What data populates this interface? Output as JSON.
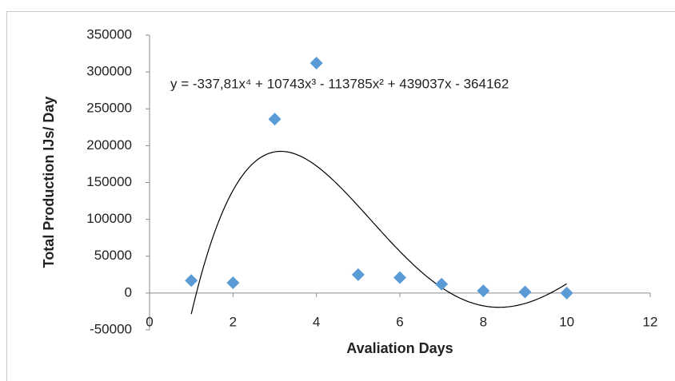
{
  "chart_data": {
    "type": "scatter",
    "x_label": "Avaliation Days",
    "y_label": "Total Production IJs/ Day",
    "x": [
      1,
      2,
      3,
      4,
      5,
      6,
      7,
      8,
      9,
      10
    ],
    "values": [
      17000,
      14000,
      236000,
      312000,
      25000,
      21000,
      12000,
      3000,
      1500,
      0
    ],
    "color": "#5b9bd5",
    "xlim": [
      0,
      12
    ],
    "xticks": [
      0,
      2,
      4,
      6,
      8,
      10,
      12
    ],
    "ylim": [
      -50000,
      350000
    ],
    "yticks": [
      -50000,
      0,
      50000,
      100000,
      150000,
      200000,
      250000,
      300000,
      350000
    ],
    "grid": false,
    "trendline": {
      "equation": "y = -337,81x⁴ + 10743x³ - 113785x² + 439037x - 364162",
      "coefficients": [
        -337.81,
        10743,
        -113785,
        439037,
        -364162
      ],
      "color": "#000000"
    }
  }
}
